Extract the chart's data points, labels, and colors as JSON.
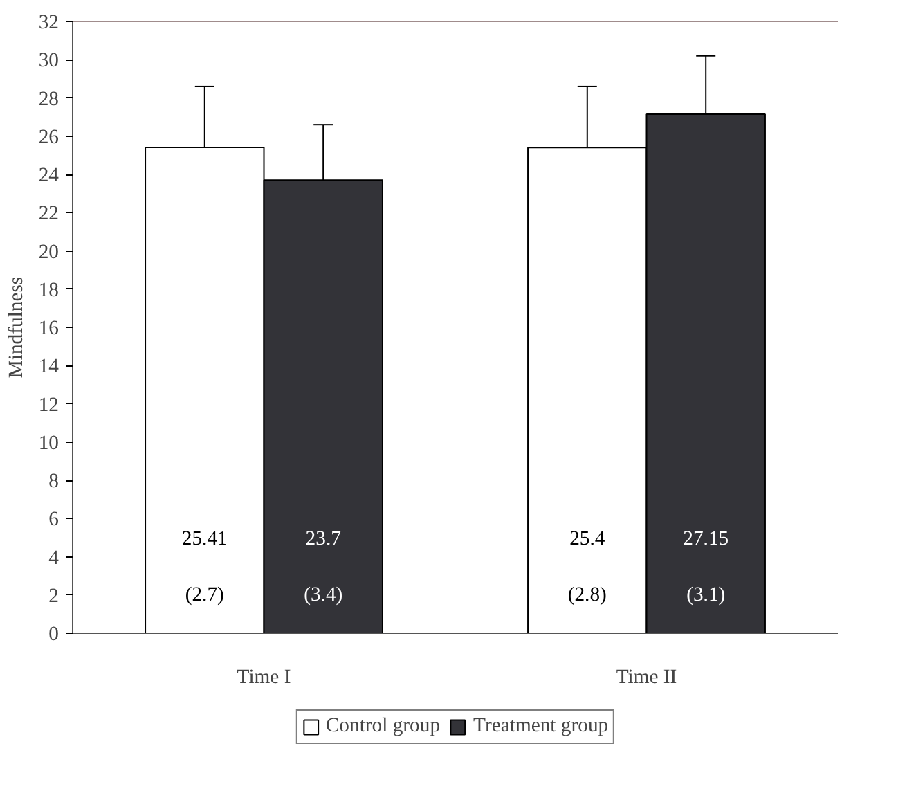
{
  "chart_data": {
    "type": "bar",
    "ylabel": "Mindfulness",
    "categories": [
      "Time I",
      "Time II"
    ],
    "series": [
      {
        "name": "Control group",
        "color": "#ffffff",
        "values": [
          25.41,
          25.4
        ],
        "errors": [
          [
            25.41,
            28.6
          ],
          [
            25.4,
            28.6
          ]
        ],
        "value_labels": [
          "25.41\n(2.7)",
          "25.4\n(2.8)"
        ]
      },
      {
        "name": "Treatment group",
        "color": "#333338",
        "values": [
          23.7,
          27.15
        ],
        "errors": [
          [
            23.7,
            26.6
          ],
          [
            27.15,
            30.2
          ]
        ],
        "value_labels": [
          "23.7\n(3.4)",
          "27.15\n(3.1)"
        ]
      }
    ],
    "ylim": [
      0,
      32
    ],
    "yticks": [
      0,
      2,
      4,
      6,
      8,
      10,
      12,
      14,
      16,
      18,
      20,
      22,
      24,
      26,
      28,
      30,
      32
    ],
    "grid": false,
    "legend": "bottom"
  }
}
